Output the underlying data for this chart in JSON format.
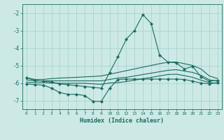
{
  "x": [
    0,
    1,
    2,
    3,
    4,
    5,
    6,
    7,
    8,
    9,
    10,
    11,
    12,
    13,
    14,
    15,
    16,
    17,
    18,
    19,
    20,
    21,
    22,
    23
  ],
  "line_main": [
    -5.7,
    -5.85,
    -5.9,
    -5.95,
    -6.05,
    -6.1,
    -6.15,
    -6.2,
    -6.25,
    -6.3,
    -5.4,
    -4.5,
    -3.5,
    -3.0,
    -2.1,
    -2.6,
    -4.4,
    -4.8,
    -4.85,
    -5.2,
    -5.05,
    -5.65,
    -5.9,
    -5.85
  ],
  "line_upper": [
    -5.7,
    -5.8,
    -5.8,
    -5.75,
    -5.72,
    -5.7,
    -5.68,
    -5.65,
    -5.63,
    -5.6,
    -5.5,
    -5.4,
    -5.3,
    -5.2,
    -5.1,
    -5.0,
    -4.9,
    -4.82,
    -4.8,
    -4.9,
    -5.0,
    -5.2,
    -5.6,
    -5.75
  ],
  "line_mid": [
    -5.82,
    -5.88,
    -5.88,
    -5.88,
    -5.88,
    -5.88,
    -5.88,
    -5.88,
    -5.88,
    -5.88,
    -5.8,
    -5.72,
    -5.68,
    -5.6,
    -5.52,
    -5.44,
    -5.36,
    -5.28,
    -5.24,
    -5.32,
    -5.4,
    -5.56,
    -5.82,
    -5.9
  ],
  "line_lower": [
    -5.95,
    -5.98,
    -5.98,
    -6.0,
    -6.02,
    -6.02,
    -6.02,
    -6.02,
    -6.05,
    -6.08,
    -6.0,
    -5.98,
    -5.92,
    -5.84,
    -5.76,
    -5.68,
    -5.6,
    -5.52,
    -5.5,
    -5.58,
    -5.68,
    -5.84,
    -5.98,
    -6.02
  ],
  "line_bottom": [
    -6.05,
    -6.1,
    -6.12,
    -6.3,
    -6.55,
    -6.65,
    -6.65,
    -6.72,
    -7.05,
    -7.05,
    -6.3,
    -5.8,
    -5.78,
    -5.78,
    -5.78,
    -5.78,
    -5.78,
    -5.78,
    -5.78,
    -5.8,
    -5.9,
    -6.0,
    -6.05,
    -5.98
  ],
  "ylim": [
    -7.5,
    -1.5
  ],
  "yticks": [
    -7,
    -6,
    -5,
    -4,
    -3,
    -2
  ],
  "xticks": [
    0,
    1,
    2,
    3,
    4,
    5,
    6,
    7,
    8,
    9,
    10,
    11,
    12,
    13,
    14,
    15,
    16,
    17,
    18,
    19,
    20,
    21,
    22,
    23
  ],
  "xlabel": "Humidex (Indice chaleur)",
  "bg_color": "#cce9e6",
  "grid_color": "#aad4d0",
  "line_color": "#1a6b60",
  "marker": "D",
  "marker_size": 2.2,
  "lw": 0.8
}
